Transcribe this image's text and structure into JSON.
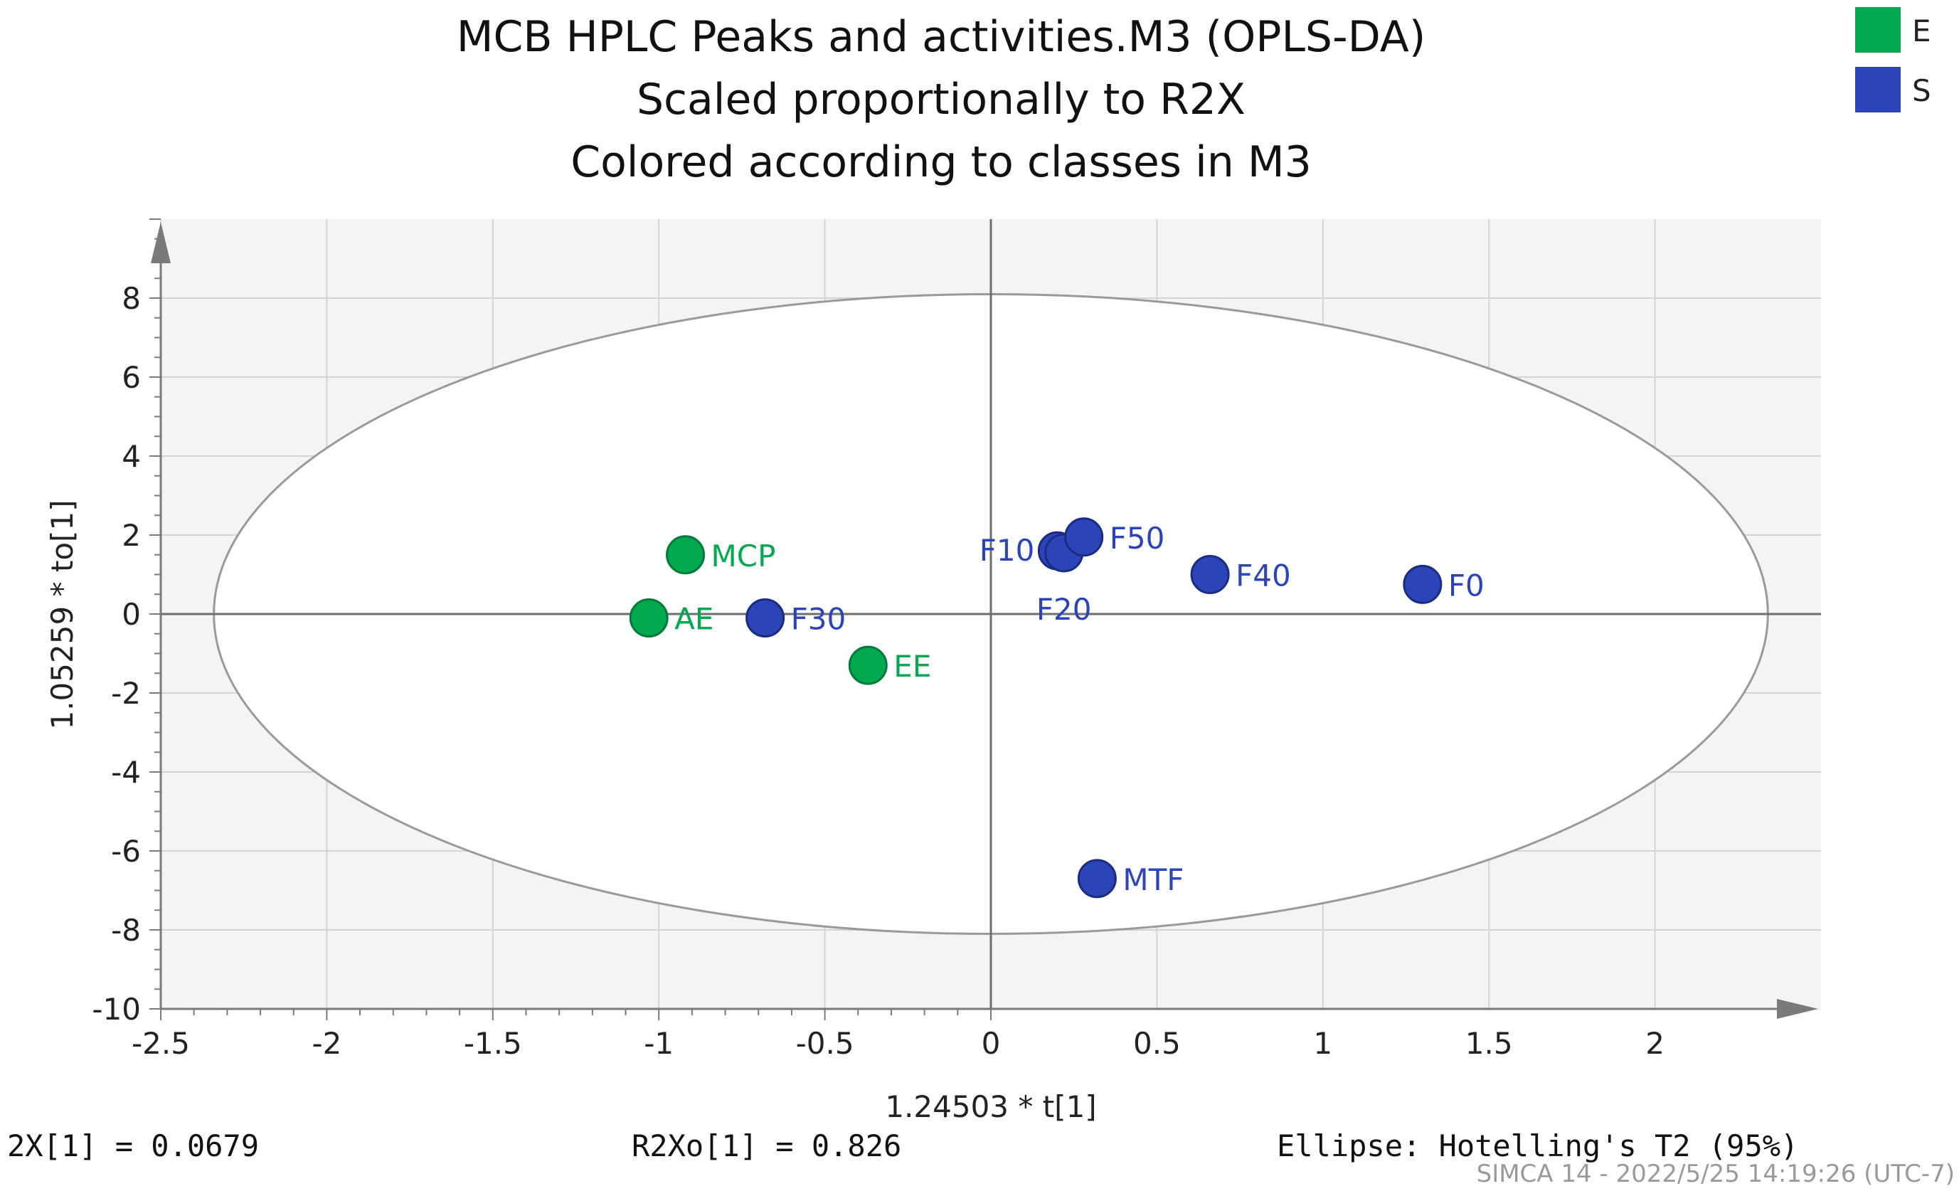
{
  "chart_data": {
    "type": "scatter",
    "title": [
      "MCB HPLC Peaks and activities.M3 (OPLS-DA)",
      "Scaled proportionally to R2X",
      "Colored according to classes in M3"
    ],
    "xlabel": "1.24503 * t[1]",
    "ylabel": "1.05259 * to[1]",
    "xlim": [
      -2.5,
      2.5
    ],
    "ylim": [
      -10,
      10
    ],
    "xticks": [
      -2.5,
      -2,
      -1.5,
      -1,
      -0.5,
      0,
      0.5,
      1,
      1.5,
      2
    ],
    "xtick_labels": [
      "-2.5",
      "-2",
      "-1.5",
      "-1",
      "-0.5",
      "0",
      "0.5",
      "1",
      "1.5",
      "2"
    ],
    "yticks": [
      -10,
      -8,
      -6,
      -4,
      -2,
      0,
      2,
      4,
      6,
      8
    ],
    "ytick_labels": [
      "-10",
      "-8",
      "-6",
      "-4",
      "-2",
      "0",
      "2",
      "4",
      "6",
      "8"
    ],
    "grid": true,
    "legend": {
      "placement": "top-right",
      "items": [
        {
          "class": "E",
          "label": "E",
          "color": "#00a84f"
        },
        {
          "class": "S",
          "label": "S",
          "color": "#2b44b8"
        }
      ]
    },
    "ellipse": {
      "name": "Hotelling's T2 (95%)",
      "cx": 0,
      "cy": 0,
      "rx": 2.34,
      "ry": 8.1
    },
    "points": [
      {
        "label": "MCP",
        "class": "E",
        "x": -0.92,
        "y": 1.5,
        "label_side": "right"
      },
      {
        "label": "AE",
        "class": "E",
        "x": -1.03,
        "y": -0.1,
        "label_side": "right"
      },
      {
        "label": "EE",
        "class": "E",
        "x": -0.37,
        "y": -1.3,
        "label_side": "right"
      },
      {
        "label": "F30",
        "class": "S",
        "x": -0.68,
        "y": -0.1,
        "label_side": "right"
      },
      {
        "label": "F10",
        "class": "S",
        "x": 0.2,
        "y": 1.6,
        "label_side": "left"
      },
      {
        "label": "F20",
        "class": "S",
        "x": 0.22,
        "y": 1.55,
        "label_side": "below"
      },
      {
        "label": "F50",
        "class": "S",
        "x": 0.28,
        "y": 1.95,
        "label_side": "right"
      },
      {
        "label": "F40",
        "class": "S",
        "x": 0.66,
        "y": 1.0,
        "label_side": "right"
      },
      {
        "label": "F0",
        "class": "S",
        "x": 1.3,
        "y": 0.75,
        "label_side": "right"
      },
      {
        "label": "MTF",
        "class": "S",
        "x": 0.32,
        "y": -6.7,
        "label_side": "right"
      }
    ]
  },
  "footer": {
    "r2x": "2X[1] = 0.0679",
    "r2xo": "R2Xo[1] = 0.826",
    "ellipse_text": "Ellipse: Hotelling's T2 (95%)",
    "stamp": "SIMCA 14 - 2022/5/25 14:19:26 (UTC-7)"
  },
  "colors": {
    "E": "#00a84f",
    "S": "#2b44b8",
    "grid": "#d4d4d4",
    "plot_bg": "#f4f4f4",
    "axis": "#7a7a7a",
    "ellipse_stroke": "#9a9a9a"
  }
}
